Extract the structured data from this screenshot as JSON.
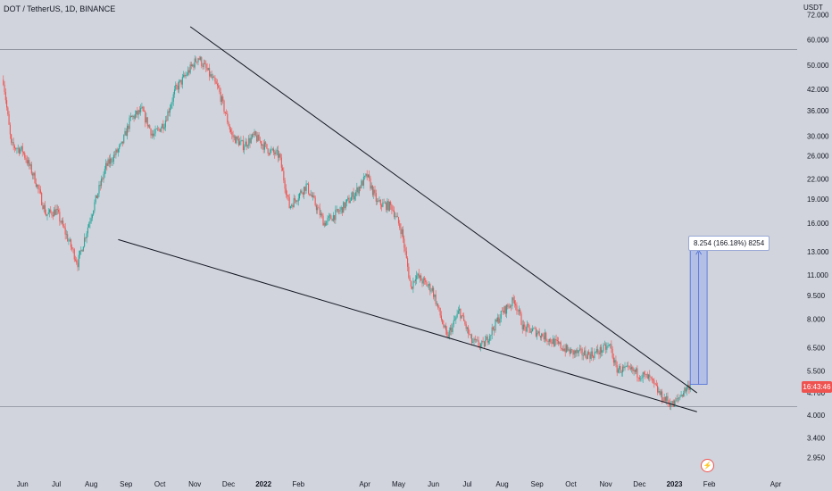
{
  "header": {
    "symbol_line": "DOT / TetherUS, 1D, BINANCE",
    "currency": "USDT"
  },
  "last_price": "16:43:46",
  "measure": {
    "label": "8.254 (166.18%) 8254"
  },
  "icons": {
    "flash": "lightning-icon"
  },
  "colors": {
    "background": "#d1d4dc",
    "up_candle": "#26a69a",
    "down_candle": "#ef5350",
    "trendline": "#131722",
    "measure_fill": "#aab8e8",
    "measure_border": "#4a6bd8",
    "price_tag": "#ef5350"
  },
  "chart_data": {
    "type": "candlestick",
    "title": "DOT / TetherUS, 1D, BINANCE",
    "xlabel": "",
    "ylabel": "USDT",
    "y_scale": "log",
    "ylim": [
      2.6,
      80
    ],
    "grid": false,
    "y_ticks": [
      "72.000",
      "60.000",
      "50.000",
      "42.000",
      "36.000",
      "30.000",
      "26.000",
      "22.000",
      "19.000",
      "16.000",
      "13.000",
      "11.000",
      "9.500",
      "8.000",
      "6.500",
      "5.500",
      "4.700",
      "4.000",
      "3.400",
      "2.950"
    ],
    "x_ticks": [
      "Jun",
      "Jul",
      "Aug",
      "Sep",
      "Oct",
      "Nov",
      "Dec",
      "2022",
      "Feb",
      "Apr",
      "May",
      "Jun",
      "Jul",
      "Aug",
      "Sep",
      "Oct",
      "Nov",
      "Dec",
      "2023",
      "Feb",
      "Apr"
    ],
    "x_range": [
      "2021-05-12",
      "2023-04-20"
    ],
    "anchors": [
      [
        "2021-05-15",
        45.0
      ],
      [
        "2021-05-22",
        28.0
      ],
      [
        "2021-06-01",
        27.0
      ],
      [
        "2021-06-12",
        22.0
      ],
      [
        "2021-06-22",
        17.0
      ],
      [
        "2021-07-01",
        17.5
      ],
      [
        "2021-07-20",
        12.0
      ],
      [
        "2021-08-01",
        17.0
      ],
      [
        "2021-08-14",
        24.0
      ],
      [
        "2021-08-28",
        28.0
      ],
      [
        "2021-09-05",
        34.0
      ],
      [
        "2021-09-15",
        36.0
      ],
      [
        "2021-09-25",
        30.0
      ],
      [
        "2021-10-05",
        33.0
      ],
      [
        "2021-10-15",
        42.0
      ],
      [
        "2021-10-25",
        47.0
      ],
      [
        "2021-11-04",
        53.0
      ],
      [
        "2021-11-12",
        48.0
      ],
      [
        "2021-11-22",
        42.0
      ],
      [
        "2021-12-04",
        30.0
      ],
      [
        "2021-12-14",
        28.0
      ],
      [
        "2021-12-24",
        30.0
      ],
      [
        "2022-01-06",
        27.0
      ],
      [
        "2022-01-15",
        26.0
      ],
      [
        "2022-01-24",
        18.0
      ],
      [
        "2022-02-08",
        21.0
      ],
      [
        "2022-02-24",
        16.0
      ],
      [
        "2022-03-10",
        17.5
      ],
      [
        "2022-03-24",
        20.0
      ],
      [
        "2022-04-03",
        22.5
      ],
      [
        "2022-04-12",
        18.5
      ],
      [
        "2022-04-25",
        18.0
      ],
      [
        "2022-05-04",
        15.0
      ],
      [
        "2022-05-12",
        10.0
      ],
      [
        "2022-05-16",
        11.0
      ],
      [
        "2022-05-31",
        9.9
      ],
      [
        "2022-06-13",
        7.0
      ],
      [
        "2022-06-24",
        8.5
      ],
      [
        "2022-07-05",
        6.8
      ],
      [
        "2022-07-15",
        6.6
      ],
      [
        "2022-08-01",
        8.4
      ],
      [
        "2022-08-12",
        9.2
      ],
      [
        "2022-08-20",
        7.5
      ],
      [
        "2022-09-01",
        7.3
      ],
      [
        "2022-09-15",
        6.8
      ],
      [
        "2022-10-01",
        6.3
      ],
      [
        "2022-10-20",
        6.2
      ],
      [
        "2022-11-05",
        6.6
      ],
      [
        "2022-11-10",
        5.6
      ],
      [
        "2022-11-25",
        5.5
      ],
      [
        "2022-12-10",
        5.2
      ],
      [
        "2022-12-20",
        4.6
      ],
      [
        "2022-12-31",
        4.3
      ],
      [
        "2023-01-08",
        4.7
      ],
      [
        "2023-01-15",
        5.0
      ]
    ],
    "trendlines": [
      {
        "name": "",
        "from": [
          "2021-10-28",
          66.0
        ],
        "to": [
          "2023-01-21",
          4.7
        ]
      },
      {
        "name": "",
        "from": [
          "2021-08-25",
          14.2
        ],
        "to": [
          "2023-01-21",
          4.1
        ]
      }
    ],
    "horizontal_lines": [
      56.0,
      4.25
    ],
    "measure": {
      "from_date": "2023-01-15",
      "to_date": "2023-01-30",
      "y_low": 5.0,
      "y_high": 13.254,
      "change": "8.254 (166.18%) 8254"
    }
  }
}
